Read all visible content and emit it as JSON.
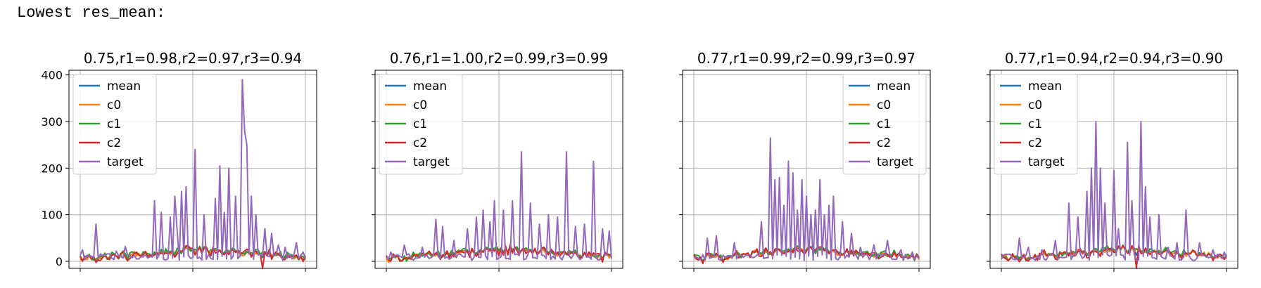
{
  "header": "Lowest res_mean:",
  "colors": {
    "mean": "#1f77b4",
    "c0": "#ff7f0e",
    "c1": "#2ca02c",
    "c2": "#d62728",
    "target": "#9467bd",
    "grid": "#b0b0b0",
    "axis": "#000000"
  },
  "chart_data": [
    {
      "type": "line",
      "title": "0.75,r1=0.98,r2=0.97,r3=0.94",
      "ylim": [
        -15,
        410
      ],
      "yticks": [
        0,
        100,
        200,
        300,
        400
      ],
      "xlim": [
        -5,
        105
      ],
      "legend_loc": "upper-left",
      "legend": [
        "mean",
        "c0",
        "c1",
        "c2",
        "target"
      ],
      "target_peaks": [
        [
          1,
          25
        ],
        [
          7,
          80
        ],
        [
          16,
          22
        ],
        [
          20,
          32
        ],
        [
          33,
          130
        ],
        [
          36,
          105
        ],
        [
          40,
          95
        ],
        [
          42,
          140
        ],
        [
          43,
          70
        ],
        [
          45,
          150
        ],
        [
          47,
          160
        ],
        [
          51,
          240
        ],
        [
          55,
          100
        ],
        [
          60,
          135
        ],
        [
          62,
          205
        ],
        [
          64,
          105
        ],
        [
          66,
          200
        ],
        [
          69,
          140
        ],
        [
          72,
          390
        ],
        [
          73,
          280
        ],
        [
          74,
          250
        ],
        [
          76,
          140
        ],
        [
          78,
          100
        ],
        [
          82,
          70
        ],
        [
          85,
          60
        ],
        [
          88,
          35
        ],
        [
          91,
          30
        ],
        [
          96,
          40
        ],
        [
          99,
          20
        ]
      ],
      "c2_dips": [
        [
          81,
          -15
        ]
      ]
    },
    {
      "type": "line",
      "title": "0.76,r1=1.00,r2=0.99,r3=0.99",
      "ylim": [
        -15,
        410
      ],
      "yticks": [
        0,
        100,
        200,
        300,
        400
      ],
      "xlim": [
        -5,
        105
      ],
      "legend_loc": "upper-left",
      "legend": [
        "mean",
        "c0",
        "c1",
        "c2",
        "target"
      ],
      "target_peaks": [
        [
          2,
          20
        ],
        [
          8,
          35
        ],
        [
          16,
          30
        ],
        [
          22,
          90
        ],
        [
          25,
          75
        ],
        [
          30,
          45
        ],
        [
          36,
          70
        ],
        [
          40,
          95
        ],
        [
          43,
          110
        ],
        [
          46,
          85
        ],
        [
          48,
          130
        ],
        [
          52,
          110
        ],
        [
          56,
          130
        ],
        [
          60,
          235
        ],
        [
          64,
          125
        ],
        [
          68,
          80
        ],
        [
          72,
          100
        ],
        [
          76,
          95
        ],
        [
          80,
          235
        ],
        [
          84,
          75
        ],
        [
          88,
          80
        ],
        [
          92,
          215
        ],
        [
          96,
          70
        ],
        [
          99,
          65
        ]
      ],
      "c2_dips": []
    },
    {
      "type": "line",
      "title": "0.77,r1=0.99,r2=0.99,r3=0.97",
      "ylim": [
        -15,
        410
      ],
      "yticks": [
        0,
        100,
        200,
        300,
        400
      ],
      "xlim": [
        -5,
        105
      ],
      "legend_loc": "upper-right",
      "legend": [
        "mean",
        "c0",
        "c1",
        "c2",
        "target"
      ],
      "target_peaks": [
        [
          6,
          50
        ],
        [
          10,
          55
        ],
        [
          18,
          40
        ],
        [
          30,
          85
        ],
        [
          34,
          265
        ],
        [
          36,
          175
        ],
        [
          38,
          180
        ],
        [
          40,
          120
        ],
        [
          42,
          215
        ],
        [
          44,
          190
        ],
        [
          46,
          110
        ],
        [
          48,
          175
        ],
        [
          50,
          140
        ],
        [
          52,
          100
        ],
        [
          54,
          110
        ],
        [
          56,
          175
        ],
        [
          58,
          100
        ],
        [
          60,
          120
        ],
        [
          62,
          140
        ],
        [
          66,
          85
        ],
        [
          70,
          60
        ],
        [
          74,
          30
        ],
        [
          80,
          35
        ],
        [
          86,
          45
        ],
        [
          92,
          25
        ],
        [
          97,
          20
        ]
      ],
      "c2_dips": []
    },
    {
      "type": "line",
      "title": "0.77,r1=0.94,r2=0.94,r3=0.90",
      "ylim": [
        -15,
        410
      ],
      "yticks": [
        0,
        100,
        200,
        300,
        400
      ],
      "xlim": [
        -5,
        105
      ],
      "legend_loc": "upper-left",
      "legend": [
        "mean",
        "c0",
        "c1",
        "c2",
        "target"
      ],
      "target_peaks": [
        [
          3,
          15
        ],
        [
          8,
          50
        ],
        [
          12,
          30
        ],
        [
          18,
          25
        ],
        [
          24,
          45
        ],
        [
          30,
          125
        ],
        [
          34,
          95
        ],
        [
          38,
          150
        ],
        [
          40,
          200
        ],
        [
          42,
          300
        ],
        [
          44,
          200
        ],
        [
          46,
          125
        ],
        [
          50,
          195
        ],
        [
          52,
          70
        ],
        [
          56,
          255
        ],
        [
          58,
          130
        ],
        [
          62,
          300
        ],
        [
          64,
          160
        ],
        [
          66,
          95
        ],
        [
          70,
          100
        ],
        [
          74,
          30
        ],
        [
          78,
          40
        ],
        [
          82,
          110
        ],
        [
          88,
          40
        ],
        [
          94,
          25
        ],
        [
          99,
          20
        ]
      ],
      "c2_dips": [
        [
          60,
          -15
        ]
      ]
    }
  ]
}
